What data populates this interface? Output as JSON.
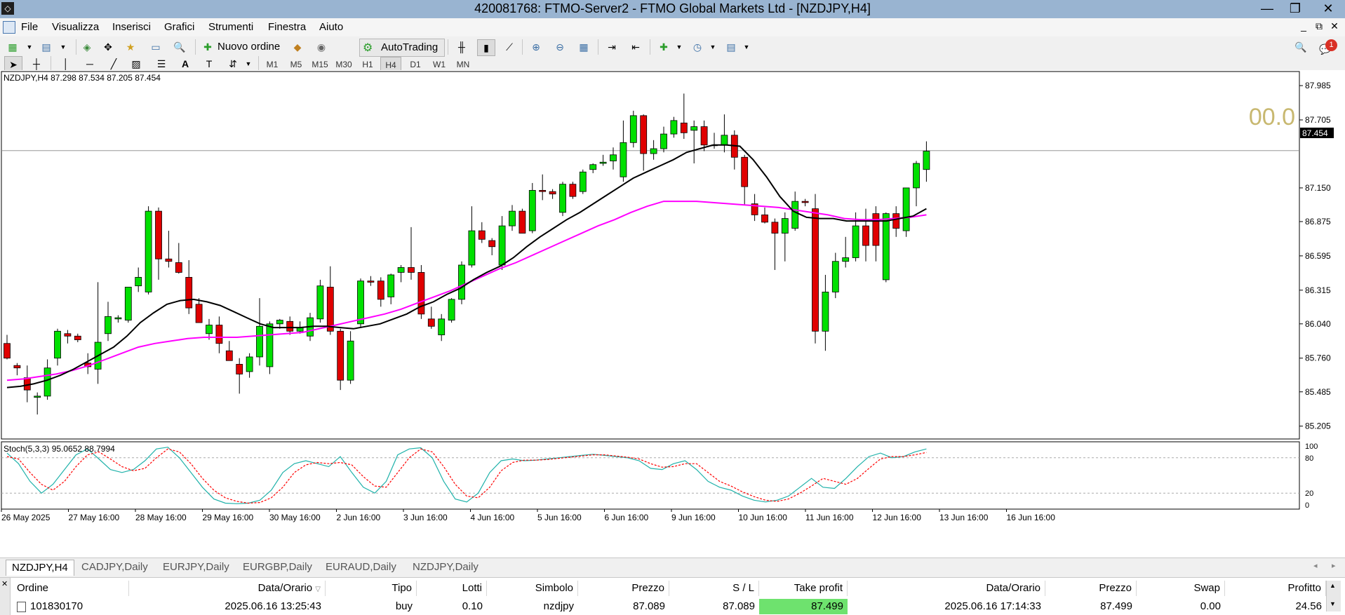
{
  "window": {
    "title": "420081768: FTMO-Server2 - FTMO Global Markets Ltd - [NZDJPY,H4]"
  },
  "menu": [
    "File",
    "Visualizza",
    "Inserisci",
    "Grafici",
    "Strumenti",
    "Finestra",
    "Aiuto"
  ],
  "toolbar": {
    "new_order": "Nuovo ordine",
    "autotrading": "AutoTrading"
  },
  "timeframes": [
    "M1",
    "M5",
    "M15",
    "M30",
    "H1",
    "H4",
    "D1",
    "W1",
    "MN"
  ],
  "active_timeframe": "H4",
  "notification_count": "1",
  "chart": {
    "header": "NZDJPY,H4  87.298 87.534 87.205 87.454",
    "watermark": "00.0",
    "current_price": "87.454",
    "price_ticks": [
      "87.985",
      "87.705",
      "87.150",
      "86.875",
      "86.595",
      "86.315",
      "86.040",
      "85.760",
      "85.485",
      "85.205"
    ],
    "time_ticks": [
      "26 May 2025",
      "27 May 16:00",
      "28 May 16:00",
      "29 May 16:00",
      "30 May 16:00",
      "2 Jun 16:00",
      "3 Jun 16:00",
      "4 Jun 16:00",
      "5 Jun 16:00",
      "6 Jun 16:00",
      "9 Jun 16:00",
      "10 Jun 16:00",
      "11 Jun 16:00",
      "12 Jun 16:00",
      "13 Jun 16:00",
      "16 Jun 16:00"
    ],
    "stoch_header": "Stoch(5,3,3) 95.0652 88.7994",
    "stoch_ticks": [
      "100",
      "80",
      "20",
      "0"
    ],
    "colors": {
      "bull": "#00e000",
      "bear": "#e00000",
      "ma_fast": "#000000",
      "ma_slow": "#ff00ff",
      "stoch_main": "#20b2aa",
      "stoch_signal": "#ff0000",
      "watermark": "#c8b870"
    }
  },
  "chart_data": {
    "type": "candlestick",
    "symbol": "NZDJPY",
    "timeframe": "H4",
    "ylim": [
      85.1,
      88.1
    ],
    "candles": [
      {
        "o": 85.88,
        "h": 85.95,
        "l": 85.75,
        "c": 85.76
      },
      {
        "o": 85.7,
        "h": 85.72,
        "l": 85.62,
        "c": 85.68
      },
      {
        "o": 85.6,
        "h": 85.7,
        "l": 85.4,
        "c": 85.5
      },
      {
        "o": 85.44,
        "h": 85.48,
        "l": 85.3,
        "c": 85.45
      },
      {
        "o": 85.45,
        "h": 85.75,
        "l": 85.42,
        "c": 85.68
      },
      {
        "o": 85.76,
        "h": 86.0,
        "l": 85.7,
        "c": 85.98
      },
      {
        "o": 85.96,
        "h": 85.99,
        "l": 85.88,
        "c": 85.94
      },
      {
        "o": 85.94,
        "h": 85.96,
        "l": 85.89,
        "c": 85.91
      },
      {
        "o": 85.72,
        "h": 85.8,
        "l": 85.63,
        "c": 85.69
      },
      {
        "o": 85.67,
        "h": 86.38,
        "l": 85.55,
        "c": 85.89
      },
      {
        "o": 85.96,
        "h": 86.22,
        "l": 85.9,
        "c": 86.1
      },
      {
        "o": 86.08,
        "h": 86.11,
        "l": 86.05,
        "c": 86.09
      },
      {
        "o": 86.07,
        "h": 86.33,
        "l": 86.05,
        "c": 86.34
      },
      {
        "o": 86.35,
        "h": 86.5,
        "l": 86.3,
        "c": 86.42
      },
      {
        "o": 86.3,
        "h": 87.0,
        "l": 86.28,
        "c": 86.96
      },
      {
        "o": 86.96,
        "h": 86.99,
        "l": 86.4,
        "c": 86.57
      },
      {
        "o": 86.57,
        "h": 86.8,
        "l": 86.5,
        "c": 86.55
      },
      {
        "o": 86.54,
        "h": 86.7,
        "l": 86.45,
        "c": 86.46
      },
      {
        "o": 86.42,
        "h": 86.56,
        "l": 86.12,
        "c": 86.17
      },
      {
        "o": 86.2,
        "h": 86.25,
        "l": 86.05,
        "c": 86.05
      },
      {
        "o": 85.96,
        "h": 86.08,
        "l": 85.91,
        "c": 86.03
      },
      {
        "o": 86.03,
        "h": 86.1,
        "l": 85.8,
        "c": 85.88
      },
      {
        "o": 85.82,
        "h": 85.9,
        "l": 85.74,
        "c": 85.74
      },
      {
        "o": 85.71,
        "h": 85.76,
        "l": 85.47,
        "c": 85.63
      },
      {
        "o": 85.65,
        "h": 85.8,
        "l": 85.6,
        "c": 85.77
      },
      {
        "o": 85.77,
        "h": 86.25,
        "l": 85.7,
        "c": 86.02
      },
      {
        "o": 85.69,
        "h": 86.06,
        "l": 85.63,
        "c": 86.04
      },
      {
        "o": 86.04,
        "h": 86.08,
        "l": 86.0,
        "c": 86.07
      },
      {
        "o": 86.06,
        "h": 86.1,
        "l": 85.95,
        "c": 85.98
      },
      {
        "o": 85.98,
        "h": 86.06,
        "l": 85.96,
        "c": 86.01
      },
      {
        "o": 85.94,
        "h": 86.13,
        "l": 85.9,
        "c": 86.09
      },
      {
        "o": 86.08,
        "h": 86.4,
        "l": 86.05,
        "c": 86.35
      },
      {
        "o": 86.34,
        "h": 86.51,
        "l": 85.95,
        "c": 85.98
      },
      {
        "o": 85.98,
        "h": 86.0,
        "l": 85.5,
        "c": 85.58
      },
      {
        "o": 85.58,
        "h": 85.98,
        "l": 85.55,
        "c": 85.9
      },
      {
        "o": 86.04,
        "h": 86.41,
        "l": 86.01,
        "c": 86.39
      },
      {
        "o": 86.39,
        "h": 86.43,
        "l": 86.35,
        "c": 86.38
      },
      {
        "o": 86.39,
        "h": 86.42,
        "l": 86.18,
        "c": 86.24
      },
      {
        "o": 86.26,
        "h": 86.45,
        "l": 86.2,
        "c": 86.44
      },
      {
        "o": 86.46,
        "h": 86.52,
        "l": 86.38,
        "c": 86.5
      },
      {
        "o": 86.5,
        "h": 86.83,
        "l": 86.4,
        "c": 86.46
      },
      {
        "o": 86.46,
        "h": 86.52,
        "l": 86.08,
        "c": 86.12
      },
      {
        "o": 86.08,
        "h": 86.18,
        "l": 86.0,
        "c": 86.02
      },
      {
        "o": 85.95,
        "h": 86.12,
        "l": 85.9,
        "c": 86.08
      },
      {
        "o": 86.07,
        "h": 86.25,
        "l": 86.05,
        "c": 86.24
      },
      {
        "o": 86.24,
        "h": 86.55,
        "l": 86.2,
        "c": 86.52
      },
      {
        "o": 86.52,
        "h": 87.0,
        "l": 86.5,
        "c": 86.8
      },
      {
        "o": 86.8,
        "h": 86.87,
        "l": 86.7,
        "c": 86.73
      },
      {
        "o": 86.72,
        "h": 86.74,
        "l": 86.6,
        "c": 86.67
      },
      {
        "o": 86.52,
        "h": 86.92,
        "l": 86.48,
        "c": 86.84
      },
      {
        "o": 86.84,
        "h": 87.01,
        "l": 86.8,
        "c": 86.96
      },
      {
        "o": 86.96,
        "h": 86.98,
        "l": 86.78,
        "c": 86.78
      },
      {
        "o": 86.8,
        "h": 87.19,
        "l": 86.78,
        "c": 87.13
      },
      {
        "o": 87.13,
        "h": 87.26,
        "l": 87.05,
        "c": 87.12
      },
      {
        "o": 87.12,
        "h": 87.14,
        "l": 87.06,
        "c": 87.1
      },
      {
        "o": 86.95,
        "h": 87.2,
        "l": 86.92,
        "c": 87.18
      },
      {
        "o": 87.18,
        "h": 87.2,
        "l": 87.06,
        "c": 87.08
      },
      {
        "o": 87.12,
        "h": 87.3,
        "l": 87.1,
        "c": 87.28
      },
      {
        "o": 87.3,
        "h": 87.35,
        "l": 87.27,
        "c": 87.34
      },
      {
        "o": 87.35,
        "h": 87.42,
        "l": 87.33,
        "c": 87.36
      },
      {
        "o": 87.37,
        "h": 87.48,
        "l": 87.3,
        "c": 87.42
      },
      {
        "o": 87.24,
        "h": 87.7,
        "l": 87.2,
        "c": 87.52
      },
      {
        "o": 87.52,
        "h": 87.78,
        "l": 87.48,
        "c": 87.74
      },
      {
        "o": 87.74,
        "h": 87.75,
        "l": 87.29,
        "c": 87.43
      },
      {
        "o": 87.43,
        "h": 87.54,
        "l": 87.38,
        "c": 87.47
      },
      {
        "o": 87.47,
        "h": 87.65,
        "l": 87.44,
        "c": 87.59
      },
      {
        "o": 87.59,
        "h": 87.73,
        "l": 87.56,
        "c": 87.7
      },
      {
        "o": 87.68,
        "h": 87.92,
        "l": 87.55,
        "c": 87.6
      },
      {
        "o": 87.62,
        "h": 87.7,
        "l": 87.35,
        "c": 87.65
      },
      {
        "o": 87.65,
        "h": 87.7,
        "l": 87.45,
        "c": 87.5
      },
      {
        "o": 87.5,
        "h": 87.6,
        "l": 87.47,
        "c": 87.5
      },
      {
        "o": 87.5,
        "h": 87.75,
        "l": 87.44,
        "c": 87.58
      },
      {
        "o": 87.58,
        "h": 87.62,
        "l": 87.3,
        "c": 87.4
      },
      {
        "o": 87.4,
        "h": 87.42,
        "l": 87.01,
        "c": 87.16
      },
      {
        "o": 87.02,
        "h": 87.1,
        "l": 86.88,
        "c": 86.93
      },
      {
        "o": 86.93,
        "h": 86.99,
        "l": 86.86,
        "c": 86.87
      },
      {
        "o": 86.87,
        "h": 86.9,
        "l": 86.48,
        "c": 86.78
      },
      {
        "o": 86.78,
        "h": 86.95,
        "l": 86.55,
        "c": 86.9
      },
      {
        "o": 86.82,
        "h": 87.12,
        "l": 86.8,
        "c": 87.04
      },
      {
        "o": 87.04,
        "h": 87.06,
        "l": 87.0,
        "c": 87.03
      },
      {
        "o": 86.98,
        "h": 87.1,
        "l": 85.88,
        "c": 85.98
      },
      {
        "o": 85.98,
        "h": 86.44,
        "l": 85.82,
        "c": 86.3
      },
      {
        "o": 86.3,
        "h": 86.62,
        "l": 86.25,
        "c": 86.55
      },
      {
        "o": 86.55,
        "h": 86.75,
        "l": 86.5,
        "c": 86.58
      },
      {
        "o": 86.58,
        "h": 86.95,
        "l": 86.55,
        "c": 86.84
      },
      {
        "o": 86.84,
        "h": 86.98,
        "l": 86.55,
        "c": 86.68
      },
      {
        "o": 86.94,
        "h": 87.0,
        "l": 86.55,
        "c": 86.68
      },
      {
        "o": 86.4,
        "h": 86.95,
        "l": 86.38,
        "c": 86.94
      },
      {
        "o": 86.94,
        "h": 87.0,
        "l": 86.75,
        "c": 86.82
      },
      {
        "o": 86.8,
        "h": 87.15,
        "l": 86.75,
        "c": 87.15
      },
      {
        "o": 87.15,
        "h": 87.37,
        "l": 87.0,
        "c": 87.35
      },
      {
        "o": 87.3,
        "h": 87.53,
        "l": 87.2,
        "c": 87.45
      }
    ],
    "ma_fast": [
      85.52,
      85.53,
      85.55,
      85.58,
      85.62,
      85.67,
      85.73,
      85.79,
      85.85,
      85.94,
      86.05,
      86.13,
      86.2,
      86.23,
      86.24,
      86.22,
      86.19,
      86.14,
      86.09,
      86.04,
      86.01,
      86.01,
      86.01,
      86.02,
      86.02,
      86.01,
      86.0,
      86.02,
      86.04,
      86.08,
      86.12,
      86.18,
      86.22,
      86.28,
      86.33,
      86.4,
      86.46,
      86.51,
      86.58,
      86.67,
      86.75,
      86.82,
      86.89,
      86.95,
      87.02,
      87.09,
      87.16,
      87.23,
      87.28,
      87.33,
      87.38,
      87.44,
      87.47,
      87.5,
      87.5,
      87.49,
      87.38,
      87.24,
      87.08,
      86.96,
      86.91,
      86.9,
      86.9,
      86.88,
      86.88,
      86.88,
      86.88,
      86.9,
      86.92,
      86.98
    ],
    "ma_slow": [
      85.58,
      85.59,
      85.61,
      85.63,
      85.66,
      85.7,
      85.75,
      85.8,
      85.85,
      85.88,
      85.9,
      85.92,
      85.93,
      85.93,
      85.93,
      85.94,
      85.95,
      85.96,
      85.97,
      86.0,
      86.03,
      86.06,
      86.09,
      86.12,
      86.16,
      86.21,
      86.26,
      86.31,
      86.37,
      86.43,
      86.49,
      86.54,
      86.6,
      86.66,
      86.72,
      86.78,
      86.84,
      86.89,
      86.95,
      87.0,
      87.04,
      87.04,
      87.04,
      87.03,
      87.02,
      87.01,
      87.0,
      86.99,
      86.97,
      86.95,
      86.93,
      86.9,
      86.89,
      86.89,
      86.9,
      86.91,
      86.93
    ],
    "stoch_main": [
      88,
      70,
      40,
      20,
      35,
      60,
      85,
      95,
      78,
      60,
      55,
      60,
      75,
      95,
      98,
      80,
      55,
      30,
      10,
      3,
      2,
      3,
      8,
      25,
      55,
      70,
      75,
      70,
      65,
      82,
      55,
      30,
      20,
      40,
      85,
      95,
      97,
      80,
      40,
      10,
      5,
      20,
      55,
      75,
      78,
      75,
      76,
      78,
      80,
      82,
      84,
      86,
      84,
      82,
      80,
      75,
      62,
      60,
      70,
      75,
      60,
      40,
      30,
      25,
      15,
      8,
      5,
      8,
      15,
      30,
      45,
      30,
      28,
      45,
      65,
      82,
      88,
      80,
      82,
      90,
      95
    ],
    "stoch_signal": [
      82,
      78,
      55,
      35,
      25,
      40,
      65,
      85,
      90,
      78,
      65,
      58,
      62,
      80,
      95,
      90,
      70,
      45,
      25,
      12,
      6,
      3,
      4,
      12,
      30,
      55,
      68,
      72,
      70,
      72,
      68,
      48,
      32,
      30,
      55,
      80,
      95,
      90,
      65,
      35,
      15,
      12,
      30,
      58,
      72,
      76,
      76,
      77,
      79,
      81,
      83,
      85,
      85,
      83,
      81,
      78,
      70,
      64,
      65,
      70,
      70,
      55,
      40,
      32,
      22,
      14,
      8,
      6,
      10,
      20,
      32,
      45,
      40,
      35,
      45,
      62,
      78,
      82,
      82,
      85,
      89
    ]
  },
  "bottom_tabs": [
    "NZDJPY,H4",
    "CADJPY,Daily",
    "EURJPY,Daily",
    "EURGBP,Daily",
    "EURAUD,Daily",
    "NZDJPY,Daily"
  ],
  "terminal": {
    "headers": [
      "Ordine",
      "Data/Orario",
      "Tipo",
      "Lotti",
      "Simbolo",
      "Prezzo",
      "S / L",
      "Take profit",
      "Data/Orario",
      "Prezzo",
      "Swap",
      "Profitto"
    ],
    "rows": [
      {
        "order": "101830170",
        "open_time": "2025.06.16 13:25:43",
        "type": "buy",
        "lots": "0.10",
        "symbol": "nzdjpy",
        "price": "87.089",
        "sl": "87.089",
        "tp": "87.499",
        "close_time": "2025.06.16 17:14:33",
        "close_price": "87.499",
        "swap": "0.00",
        "profit": "24.56"
      }
    ]
  }
}
